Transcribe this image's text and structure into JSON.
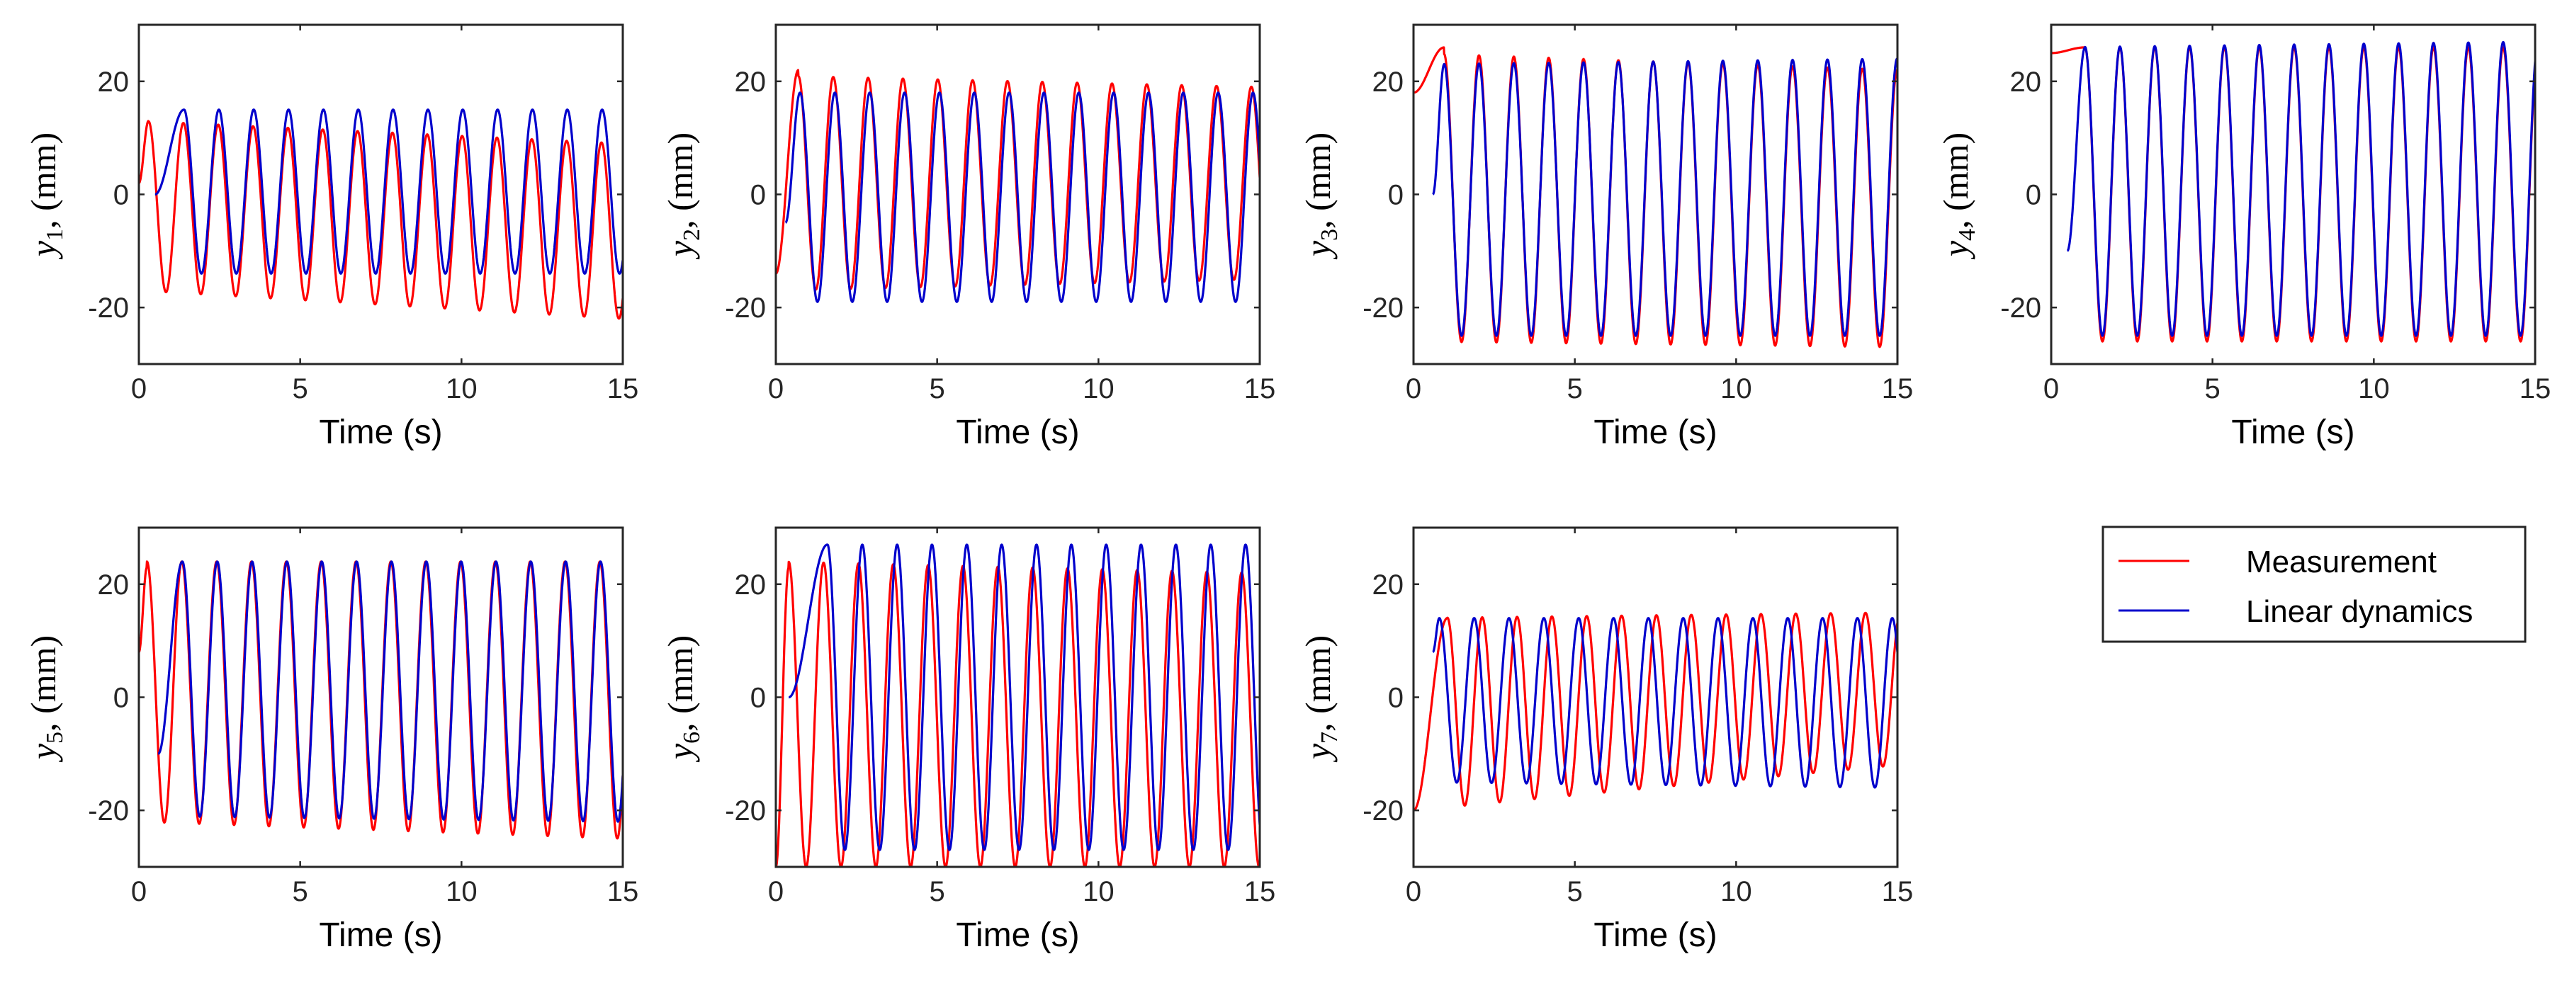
{
  "figure": {
    "legend": {
      "entries": [
        {
          "label": "Measurement",
          "color": "#ff0000"
        },
        {
          "label": "Linear dynamics",
          "color": "#0000cc"
        }
      ]
    }
  },
  "chart_data": [
    {
      "type": "line",
      "ylabel": {
        "var": "y",
        "sub": "1",
        "tail": ", (mm)"
      },
      "xlabel": "Time (s)",
      "xlim": [
        0,
        15
      ],
      "ylim": [
        -30,
        30
      ],
      "xticks": [
        "0",
        "5",
        "10",
        "15"
      ],
      "yticks": [
        "-20",
        "0",
        "20"
      ],
      "series": [
        {
          "name": "Measurement",
          "color": "#ff0000",
          "t0": 0,
          "start": 2,
          "peak_time": 0.3,
          "peak": 13,
          "period": 1.08,
          "pk_start": 13,
          "pk_end": 9,
          "tr_start": -17,
          "tr_end": -22
        },
        {
          "name": "Linear dynamics",
          "color": "#0000cc",
          "t0": 0.5,
          "start": 0,
          "peak_time": 1.4,
          "peak": 15,
          "period": 1.08,
          "pk_start": 15,
          "pk_end": 15,
          "tr_start": -14,
          "tr_end": -14
        }
      ]
    },
    {
      "type": "line",
      "ylabel": {
        "var": "y",
        "sub": "2",
        "tail": ", (mm)"
      },
      "xlabel": "Time (s)",
      "xlim": [
        0,
        15
      ],
      "ylim": [
        -30,
        30
      ],
      "xticks": [
        "0",
        "5",
        "10",
        "15"
      ],
      "yticks": [
        "-20",
        "0",
        "20"
      ],
      "series": [
        {
          "name": "Measurement",
          "color": "#ff0000",
          "t0": 0,
          "start": -14,
          "peak_time": 0.7,
          "peak": 22,
          "period": 1.08,
          "pk_start": 21,
          "pk_end": 19,
          "tr_start": -17,
          "tr_end": -15
        },
        {
          "name": "Linear dynamics",
          "color": "#0000cc",
          "t0": 0.3,
          "start": -5,
          "peak_time": 0.75,
          "peak": 18,
          "period": 1.08,
          "pk_start": 18,
          "pk_end": 18,
          "tr_start": -19,
          "tr_end": -19
        }
      ]
    },
    {
      "type": "line",
      "ylabel": {
        "var": "y",
        "sub": "3",
        "tail": ", (mm)"
      },
      "xlabel": "Time (s)",
      "xlim": [
        0,
        15
      ],
      "ylim": [
        -30,
        30
      ],
      "xticks": [
        "0",
        "5",
        "10",
        "15"
      ],
      "yticks": [
        "-20",
        "0",
        "20"
      ],
      "series": [
        {
          "name": "Measurement",
          "color": "#ff0000",
          "t0": 0,
          "start": 18,
          "peak_time": 0.95,
          "peak": 26,
          "period": 1.08,
          "pk_start": 25,
          "pk_end": 22,
          "tr_start": -26,
          "tr_end": -27
        },
        {
          "name": "Linear dynamics",
          "color": "#0000cc",
          "t0": 0.6,
          "start": 0,
          "peak_time": 0.95,
          "peak": 23,
          "period": 1.08,
          "pk_start": 23,
          "pk_end": 24,
          "tr_start": -25,
          "tr_end": -25
        }
      ]
    },
    {
      "type": "line",
      "ylabel": {
        "var": "y",
        "sub": "4",
        "tail": ", (mm)"
      },
      "xlabel": "Time (s)",
      "xlim": [
        0,
        15
      ],
      "ylim": [
        -30,
        30
      ],
      "xticks": [
        "0",
        "5",
        "10",
        "15"
      ],
      "yticks": [
        "-20",
        "0",
        "20"
      ],
      "series": [
        {
          "name": "Measurement",
          "color": "#ff0000",
          "t0": 0,
          "start": 25,
          "peak_time": 1.05,
          "peak": 26,
          "period": 1.08,
          "pk_start": 26,
          "pk_end": 26,
          "tr_start": -26,
          "tr_end": -26
        },
        {
          "name": "Linear dynamics",
          "color": "#0000cc",
          "t0": 0.5,
          "start": -10,
          "peak_time": 1.05,
          "peak": 26,
          "period": 1.08,
          "pk_start": 26,
          "pk_end": 27,
          "tr_start": -25,
          "tr_end": -25
        }
      ]
    },
    {
      "type": "line",
      "ylabel": {
        "var": "y",
        "sub": "5",
        "tail": ", (mm)"
      },
      "xlabel": "Time (s)",
      "xlim": [
        0,
        15
      ],
      "ylim": [
        -30,
        30
      ],
      "xticks": [
        "0",
        "5",
        "10",
        "15"
      ],
      "yticks": [
        "-20",
        "0",
        "20"
      ],
      "series": [
        {
          "name": "Measurement",
          "color": "#ff0000",
          "t0": 0,
          "start": 8,
          "peak_time": 0.25,
          "peak": 23,
          "period": 1.08,
          "pk_start": 24,
          "pk_end": 24,
          "tr_start": -22,
          "tr_end": -25
        },
        {
          "name": "Linear dynamics",
          "color": "#0000cc",
          "t0": 0.6,
          "start": -10,
          "peak_time": 1.35,
          "peak": 24,
          "period": 1.08,
          "pk_start": 24,
          "pk_end": 24,
          "tr_start": -21,
          "tr_end": -22
        }
      ]
    },
    {
      "type": "line",
      "ylabel": {
        "var": "y",
        "sub": "6",
        "tail": ", (mm)"
      },
      "xlabel": "Time (s)",
      "xlim": [
        0,
        15
      ],
      "ylim": [
        -30,
        30
      ],
      "xticks": [
        "0",
        "5",
        "10",
        "15"
      ],
      "yticks": [
        "-20",
        "0",
        "20"
      ],
      "series": [
        {
          "name": "Measurement",
          "color": "#ff0000",
          "t0": 0,
          "start": -30,
          "peak_time": 0.4,
          "peak": 23,
          "period": 1.08,
          "pk_start": 24,
          "pk_end": 22,
          "tr_start": -30,
          "tr_end": -30
        },
        {
          "name": "Linear dynamics",
          "color": "#0000cc",
          "t0": 0.4,
          "start": 0,
          "peak_time": 1.6,
          "peak": 27,
          "period": 1.08,
          "pk_start": 27,
          "pk_end": 27,
          "tr_start": -27,
          "tr_end": -27
        }
      ]
    },
    {
      "type": "line",
      "ylabel": {
        "var": "y",
        "sub": "7",
        "tail": ", (mm)"
      },
      "xlabel": "Time (s)",
      "xlim": [
        0,
        15
      ],
      "ylim": [
        -30,
        30
      ],
      "xticks": [
        "0",
        "5",
        "10",
        "15"
      ],
      "yticks": [
        "-20",
        "0",
        "20"
      ],
      "series": [
        {
          "name": "Measurement",
          "color": "#ff0000",
          "t0": 0,
          "start": -20,
          "peak_time": 1.05,
          "peak": 14,
          "period": 1.08,
          "pk_start": 14,
          "pk_end": 15,
          "tr_start": -20,
          "tr_end": -12
        },
        {
          "name": "Linear dynamics",
          "color": "#0000cc",
          "t0": 0.6,
          "start": 8,
          "peak_time": 0.8,
          "peak": 14,
          "period": 1.08,
          "pk_start": 14,
          "pk_end": 14,
          "tr_start": -15,
          "tr_end": -16
        }
      ]
    }
  ]
}
